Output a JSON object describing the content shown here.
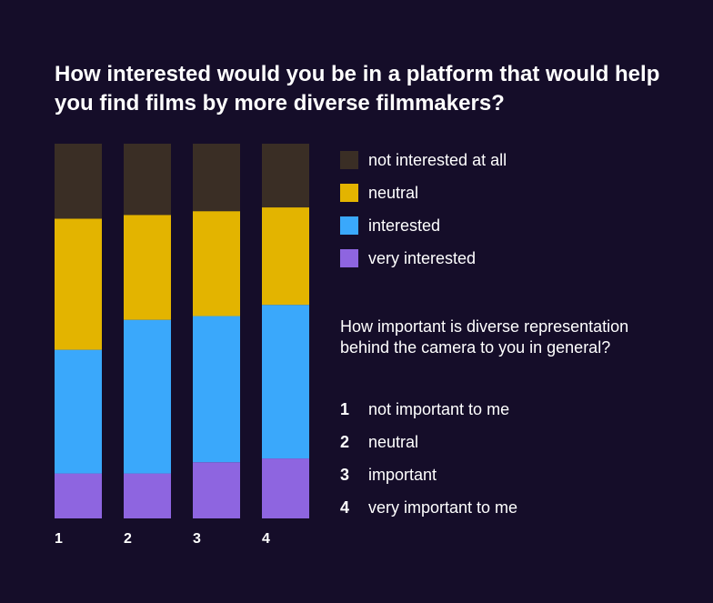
{
  "chart_data": {
    "type": "bar",
    "stacked": true,
    "normalized": true,
    "title": "How interested would you be in a platform that would help you find films by more diverse filmmakers?",
    "categories": [
      "1",
      "2",
      "3",
      "4"
    ],
    "series": [
      {
        "name": "very interested",
        "color": "#8e65e0",
        "values": [
          12,
          12,
          15,
          16
        ]
      },
      {
        "name": "interested",
        "color": "#3aa8fb",
        "values": [
          33,
          41,
          39,
          41
        ]
      },
      {
        "name": "neutral",
        "color": "#e3b400",
        "values": [
          35,
          28,
          28,
          26
        ]
      },
      {
        "name": "not interested at all",
        "color": "#3a2e25",
        "values": [
          20,
          19,
          18,
          17
        ]
      }
    ],
    "ylim": [
      0,
      100
    ]
  },
  "legend": {
    "items": [
      {
        "label": "not interested at all",
        "color": "#3a2e25"
      },
      {
        "label": "neutral",
        "color": "#e3b400"
      },
      {
        "label": "interested",
        "color": "#3aa8fb"
      },
      {
        "label": "very interested",
        "color": "#8e65e0"
      }
    ]
  },
  "secondary": {
    "question": "How important is diverse representation behind the camera to you in general?",
    "items": [
      {
        "num": "1",
        "label": "not important to me"
      },
      {
        "num": "2",
        "label": "neutral"
      },
      {
        "num": "3",
        "label": "important"
      },
      {
        "num": "4",
        "label": "very important to me"
      }
    ]
  }
}
